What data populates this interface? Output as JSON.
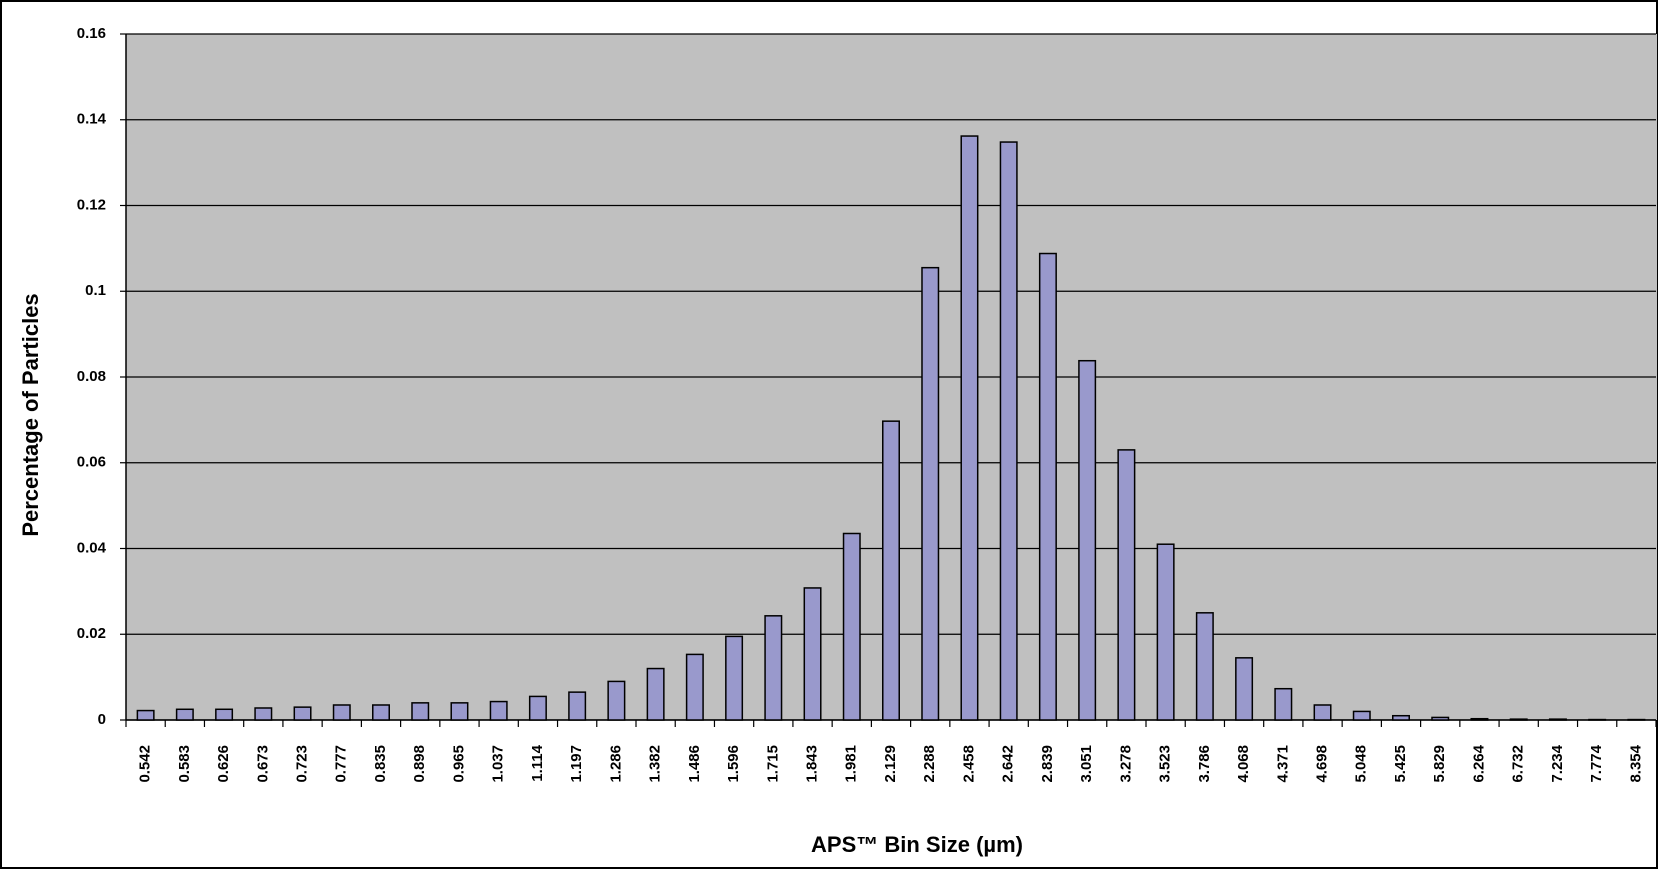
{
  "chart_data": {
    "type": "bar",
    "x_label": "APS™ Bin Size (µm)",
    "y_label": "Percentage of Particles",
    "categories": [
      "0.542",
      "0.583",
      "0.626",
      "0.673",
      "0.723",
      "0.777",
      "0.835",
      "0.898",
      "0.965",
      "1.037",
      "1.114",
      "1.197",
      "1.286",
      "1.382",
      "1.486",
      "1.596",
      "1.715",
      "1.843",
      "1.981",
      "2.129",
      "2.288",
      "2.458",
      "2.642",
      "2.839",
      "3.051",
      "3.278",
      "3.523",
      "3.786",
      "4.068",
      "4.371",
      "4.698",
      "5.048",
      "5.425",
      "5.829",
      "6.264",
      "6.732",
      "7.234",
      "7.774",
      "8.354"
    ],
    "values": [
      0.0022,
      0.0025,
      0.0025,
      0.0028,
      0.003,
      0.0035,
      0.0035,
      0.004,
      0.004,
      0.0043,
      0.0055,
      0.0065,
      0.009,
      0.012,
      0.0153,
      0.0195,
      0.0243,
      0.0308,
      0.0435,
      0.0697,
      0.1055,
      0.1362,
      0.1348,
      0.1088,
      0.0838,
      0.063,
      0.041,
      0.025,
      0.0145,
      0.0073,
      0.0035,
      0.002,
      0.001,
      0.0006,
      0.0003,
      0.0002,
      0.0002,
      0.0001,
      0.0001
    ],
    "color": "#9999cc",
    "ylim": [
      0,
      0.16
    ],
    "yticks": [
      0,
      0.02,
      0.04,
      0.06,
      0.08,
      0.1,
      0.12,
      0.14,
      0.16
    ],
    "grid": true
  }
}
